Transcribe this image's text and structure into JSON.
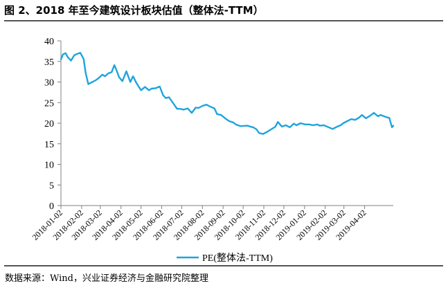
{
  "figure": {
    "title": "图 2、2018 年至今建筑设计板块估值（整体法-TTM）",
    "source": "数据来源：Wind，兴业证券经济与金融研究院整理"
  },
  "colors": {
    "line": "#1EA4DC",
    "axis": "#808080"
  },
  "chart_data": {
    "type": "line",
    "title": "",
    "xlabel": "",
    "ylabel": "",
    "ylim": [
      0,
      40
    ],
    "y_ticks": [
      0,
      5,
      10,
      15,
      20,
      25,
      30,
      35,
      40
    ],
    "x_range": [
      "2018-01-02",
      "2019-05-15"
    ],
    "x_tick_labels": [
      "2018-01-02",
      "2018-02-02",
      "2018-03-02",
      "2018-04-02",
      "2018-05-02",
      "2018-06-02",
      "2018-07-02",
      "2018-08-02",
      "2018-09-02",
      "2018-10-02",
      "2018-11-02",
      "2018-12-02",
      "2019-01-02",
      "2019-02-02",
      "2019-03-02",
      "2019-04-02"
    ],
    "grid": false,
    "legend": {
      "position": "bottom-center",
      "entries": [
        "PE(整体法-TTM)"
      ]
    },
    "series": [
      {
        "name": "PE(整体法-TTM)",
        "x": [
          "2018-01-02",
          "2018-01-05",
          "2018-01-09",
          "2018-01-12",
          "2018-01-17",
          "2018-01-22",
          "2018-01-26",
          "2018-01-31",
          "2018-02-05",
          "2018-02-08",
          "2018-02-12",
          "2018-02-23",
          "2018-02-28",
          "2018-03-05",
          "2018-03-09",
          "2018-03-14",
          "2018-03-19",
          "2018-03-23",
          "2018-03-26",
          "2018-03-30",
          "2018-04-04",
          "2018-04-10",
          "2018-04-16",
          "2018-04-20",
          "2018-04-25",
          "2018-05-02",
          "2018-05-08",
          "2018-05-14",
          "2018-05-18",
          "2018-05-24",
          "2018-05-30",
          "2018-06-04",
          "2018-06-08",
          "2018-06-13",
          "2018-06-19",
          "2018-06-25",
          "2018-06-29",
          "2018-07-05",
          "2018-07-11",
          "2018-07-17",
          "2018-07-23",
          "2018-07-27",
          "2018-08-02",
          "2018-08-08",
          "2018-08-14",
          "2018-08-20",
          "2018-08-24",
          "2018-08-30",
          "2018-09-05",
          "2018-09-11",
          "2018-09-17",
          "2018-09-21",
          "2018-09-28",
          "2018-10-09",
          "2018-10-12",
          "2018-10-17",
          "2018-10-22",
          "2018-10-26",
          "2018-11-01",
          "2018-11-07",
          "2018-11-13",
          "2018-11-19",
          "2018-11-23",
          "2018-11-29",
          "2018-12-05",
          "2018-12-11",
          "2018-12-17",
          "2018-12-21",
          "2018-12-27",
          "2019-01-03",
          "2019-01-09",
          "2019-01-15",
          "2019-01-21",
          "2019-01-25",
          "2019-01-31",
          "2019-02-13",
          "2019-02-19",
          "2019-02-25",
          "2019-03-01",
          "2019-03-07",
          "2019-03-13",
          "2019-03-19",
          "2019-03-25",
          "2019-03-29",
          "2019-04-04",
          "2019-04-10",
          "2019-04-16",
          "2019-04-22",
          "2019-04-26",
          "2019-05-06",
          "2019-05-09",
          "2019-05-13",
          "2019-05-15"
        ],
        "values": [
          35.5,
          36.7,
          37.0,
          36.1,
          35.2,
          36.5,
          36.8,
          37.1,
          35.6,
          32.2,
          29.5,
          30.4,
          31.0,
          31.8,
          31.4,
          32.1,
          32.4,
          34.1,
          33.0,
          31.2,
          30.2,
          32.6,
          30.0,
          31.4,
          29.8,
          28.0,
          28.8,
          28.0,
          28.4,
          28.5,
          28.9,
          26.8,
          26.1,
          26.3,
          24.9,
          23.5,
          23.5,
          23.3,
          23.6,
          22.5,
          23.8,
          23.7,
          24.2,
          24.5,
          24.0,
          23.6,
          22.2,
          22.0,
          21.2,
          20.5,
          20.2,
          19.7,
          19.3,
          19.4,
          19.2,
          19.0,
          18.5,
          17.6,
          17.4,
          17.9,
          18.5,
          19.1,
          20.3,
          19.2,
          19.5,
          19.0,
          19.9,
          19.5,
          20.0,
          19.7,
          19.7,
          19.5,
          19.7,
          19.4,
          19.5,
          18.6,
          19.1,
          19.5,
          20.0,
          20.5,
          21.0,
          20.8,
          21.4,
          22.0,
          21.2,
          21.8,
          22.5,
          21.7,
          22.0,
          21.4,
          21.3,
          19.0,
          19.4
        ]
      }
    ]
  }
}
